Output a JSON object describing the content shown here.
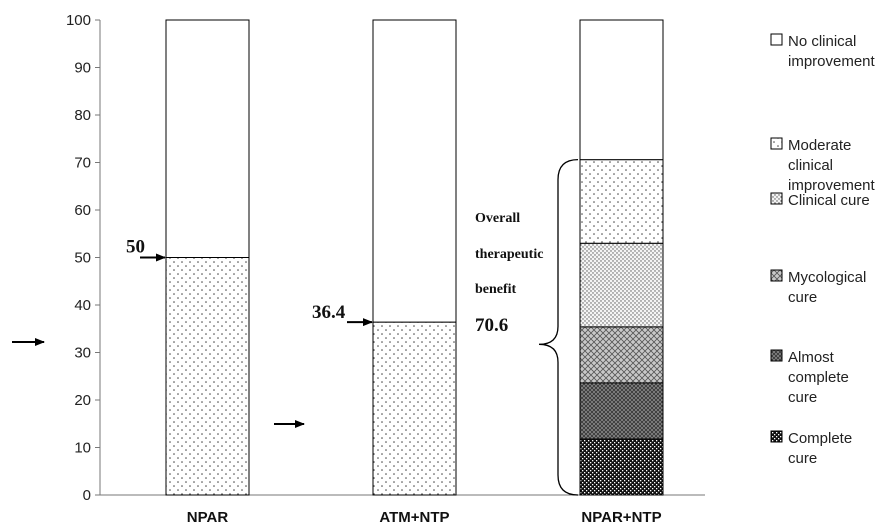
{
  "chart_data": {
    "type": "bar",
    "stacked": true,
    "categories": [
      "NPAR",
      "ATM+NTP",
      "NPAR+NTP"
    ],
    "ylim": [
      0,
      100
    ],
    "yticks": [
      0,
      10,
      20,
      30,
      40,
      50,
      60,
      70,
      80,
      90,
      100
    ],
    "grid": false,
    "legend_position": "right",
    "series": [
      {
        "name": "Complete cure",
        "pattern": "checker",
        "values": [
          0,
          0,
          11.8
        ]
      },
      {
        "name": "Almost complete cure",
        "pattern": "cross-dense",
        "values": [
          0,
          0,
          11.8
        ]
      },
      {
        "name": "Mycological cure",
        "pattern": "cross",
        "values": [
          0,
          0,
          11.8
        ]
      },
      {
        "name": "Clinical cure",
        "pattern": "dots-dense",
        "values": [
          0,
          0,
          17.6
        ]
      },
      {
        "name": "Moderate clinical improvement",
        "pattern": "dots",
        "values": [
          50,
          36.4,
          17.6
        ]
      },
      {
        "name": "No clinical improvement",
        "pattern": "blank",
        "values": [
          50,
          63.6,
          29.4
        ]
      }
    ],
    "legend": [
      {
        "text": "No clinical improvement",
        "lines": [
          "No clinical",
          "improvement"
        ],
        "pattern": "blank"
      },
      {
        "text": "Moderate clinical improvement",
        "lines": [
          "Moderate",
          "clinical",
          "improvement"
        ],
        "pattern": "dots"
      },
      {
        "text": "Clinical cure",
        "lines": [
          "Clinical cure"
        ],
        "pattern": "dots-dense"
      },
      {
        "text": "Mycological cure",
        "lines": [
          "Mycological",
          "cure"
        ],
        "pattern": "cross"
      },
      {
        "text": "Almost complete cure",
        "lines": [
          "Almost",
          "complete",
          "cure"
        ],
        "pattern": "cross-dense"
      },
      {
        "text": "Complete cure",
        "lines": [
          "Complete",
          "cure"
        ],
        "pattern": "checker"
      }
    ],
    "annotations": [
      {
        "text": "50",
        "category": "NPAR",
        "value": 50
      },
      {
        "text": "36.4",
        "category": "ATM+NTP",
        "value": 36.4
      },
      {
        "text": "Overall",
        "category": "NPAR+NTP"
      },
      {
        "text": "therapeutic",
        "category": "NPAR+NTP"
      },
      {
        "text": "benefit",
        "category": "NPAR+NTP"
      },
      {
        "text": "70.6",
        "category": "NPAR+NTP",
        "value": 70.6
      }
    ]
  }
}
